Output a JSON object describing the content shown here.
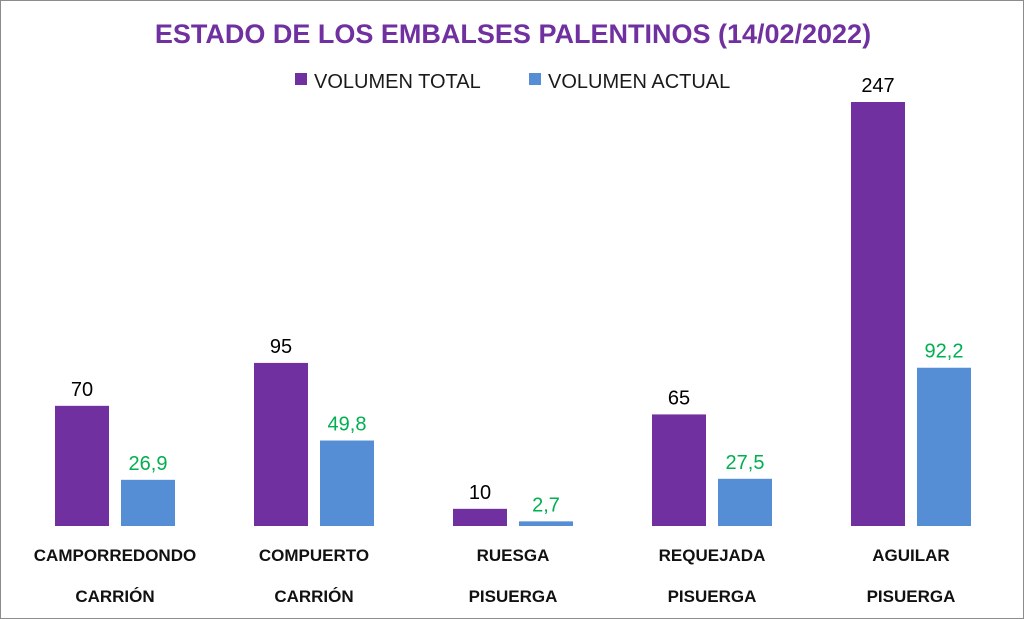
{
  "chart_data": {
    "type": "bar",
    "title": "ESTADO DE LOS EMBALSES PALENTINOS (14/02/2022)",
    "categories": [
      {
        "name": "CAMPORREDONDO",
        "river": "CARRIÓN"
      },
      {
        "name": "COMPUERTO",
        "river": "CARRIÓN"
      },
      {
        "name": "RUESGA",
        "river": "PISUERGA"
      },
      {
        "name": "REQUEJADA",
        "river": "PISUERGA"
      },
      {
        "name": "AGUILAR",
        "river": "PISUERGA"
      }
    ],
    "series": [
      {
        "name": "VOLUMEN TOTAL",
        "values": [
          70,
          95,
          10,
          65,
          247
        ],
        "labels": [
          "70",
          "95",
          "10",
          "65",
          "247"
        ],
        "color": "#7030a0",
        "label_color": "#000000"
      },
      {
        "name": "VOLUMEN ACTUAL",
        "values": [
          26.9,
          49.8,
          2.7,
          27.5,
          92.2
        ],
        "labels": [
          "26,9",
          "49,8",
          "2,7",
          "27,5",
          "92,2"
        ],
        "color": "#558ed5",
        "label_color": "#00b050"
      }
    ],
    "xlabel": "",
    "ylabel": "",
    "ylim": [
      0,
      247
    ],
    "grid": false,
    "legend_position": "top-center"
  },
  "colors": {
    "title": "#7030a0"
  }
}
